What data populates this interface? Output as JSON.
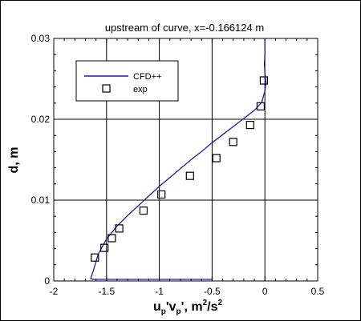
{
  "chart_data": {
    "type": "line",
    "title": "upstream of curve, x=-0.166124 m",
    "xlabel_parts": [
      "u",
      "p",
      "'v",
      "p",
      "', m",
      "2",
      "/s",
      "2"
    ],
    "ylabel": "d, m",
    "xlim": [
      -2,
      0.5
    ],
    "ylim": [
      0,
      0.03
    ],
    "xticks": [
      "-2",
      "-1.5",
      "-1",
      "-0.5",
      "0",
      "0.5"
    ],
    "xtick_values": [
      -2,
      -1.5,
      -1,
      -0.5,
      0,
      0.5
    ],
    "yticks": [
      "0",
      "0.01",
      "0.02",
      "0.03"
    ],
    "ytick_values": [
      0,
      0.01,
      0.02,
      0.03
    ],
    "grid": true,
    "legend_placement": "top-left",
    "series": [
      {
        "name": "CFD++",
        "kind": "line",
        "color": "#1e1ea0",
        "x": [
          -0.5,
          -1.63,
          -1.65,
          -1.62,
          -1.58,
          -1.5,
          -1.4,
          -1.3,
          -1.2,
          -1.1,
          -1.0,
          -0.9,
          -0.8,
          -0.7,
          -0.6,
          -0.5,
          -0.4,
          -0.3,
          -0.2,
          -0.1,
          -0.03,
          0.0,
          0.01,
          0.0,
          -0.005,
          0.0,
          0.0,
          0.0
        ],
        "y": [
          0.0002,
          0.0002,
          0.0003,
          0.0015,
          0.0033,
          0.0052,
          0.0068,
          0.0081,
          0.0093,
          0.0105,
          0.0117,
          0.0128,
          0.0139,
          0.015,
          0.016,
          0.0171,
          0.0181,
          0.0191,
          0.0201,
          0.0211,
          0.0221,
          0.0235,
          0.0245,
          0.0258,
          0.0268,
          0.028,
          0.029,
          0.03
        ]
      },
      {
        "name": "exp",
        "kind": "scatter",
        "marker": "square",
        "color": "#000000",
        "x": [
          -1.61,
          -1.52,
          -1.45,
          -1.38,
          -1.15,
          -0.98,
          -0.71,
          -0.46,
          -0.3,
          -0.14,
          -0.04,
          -0.01
        ],
        "y": [
          0.0029,
          0.0041,
          0.0053,
          0.0065,
          0.0087,
          0.0107,
          0.013,
          0.0152,
          0.0172,
          0.0193,
          0.0216,
          0.0248
        ]
      }
    ]
  }
}
